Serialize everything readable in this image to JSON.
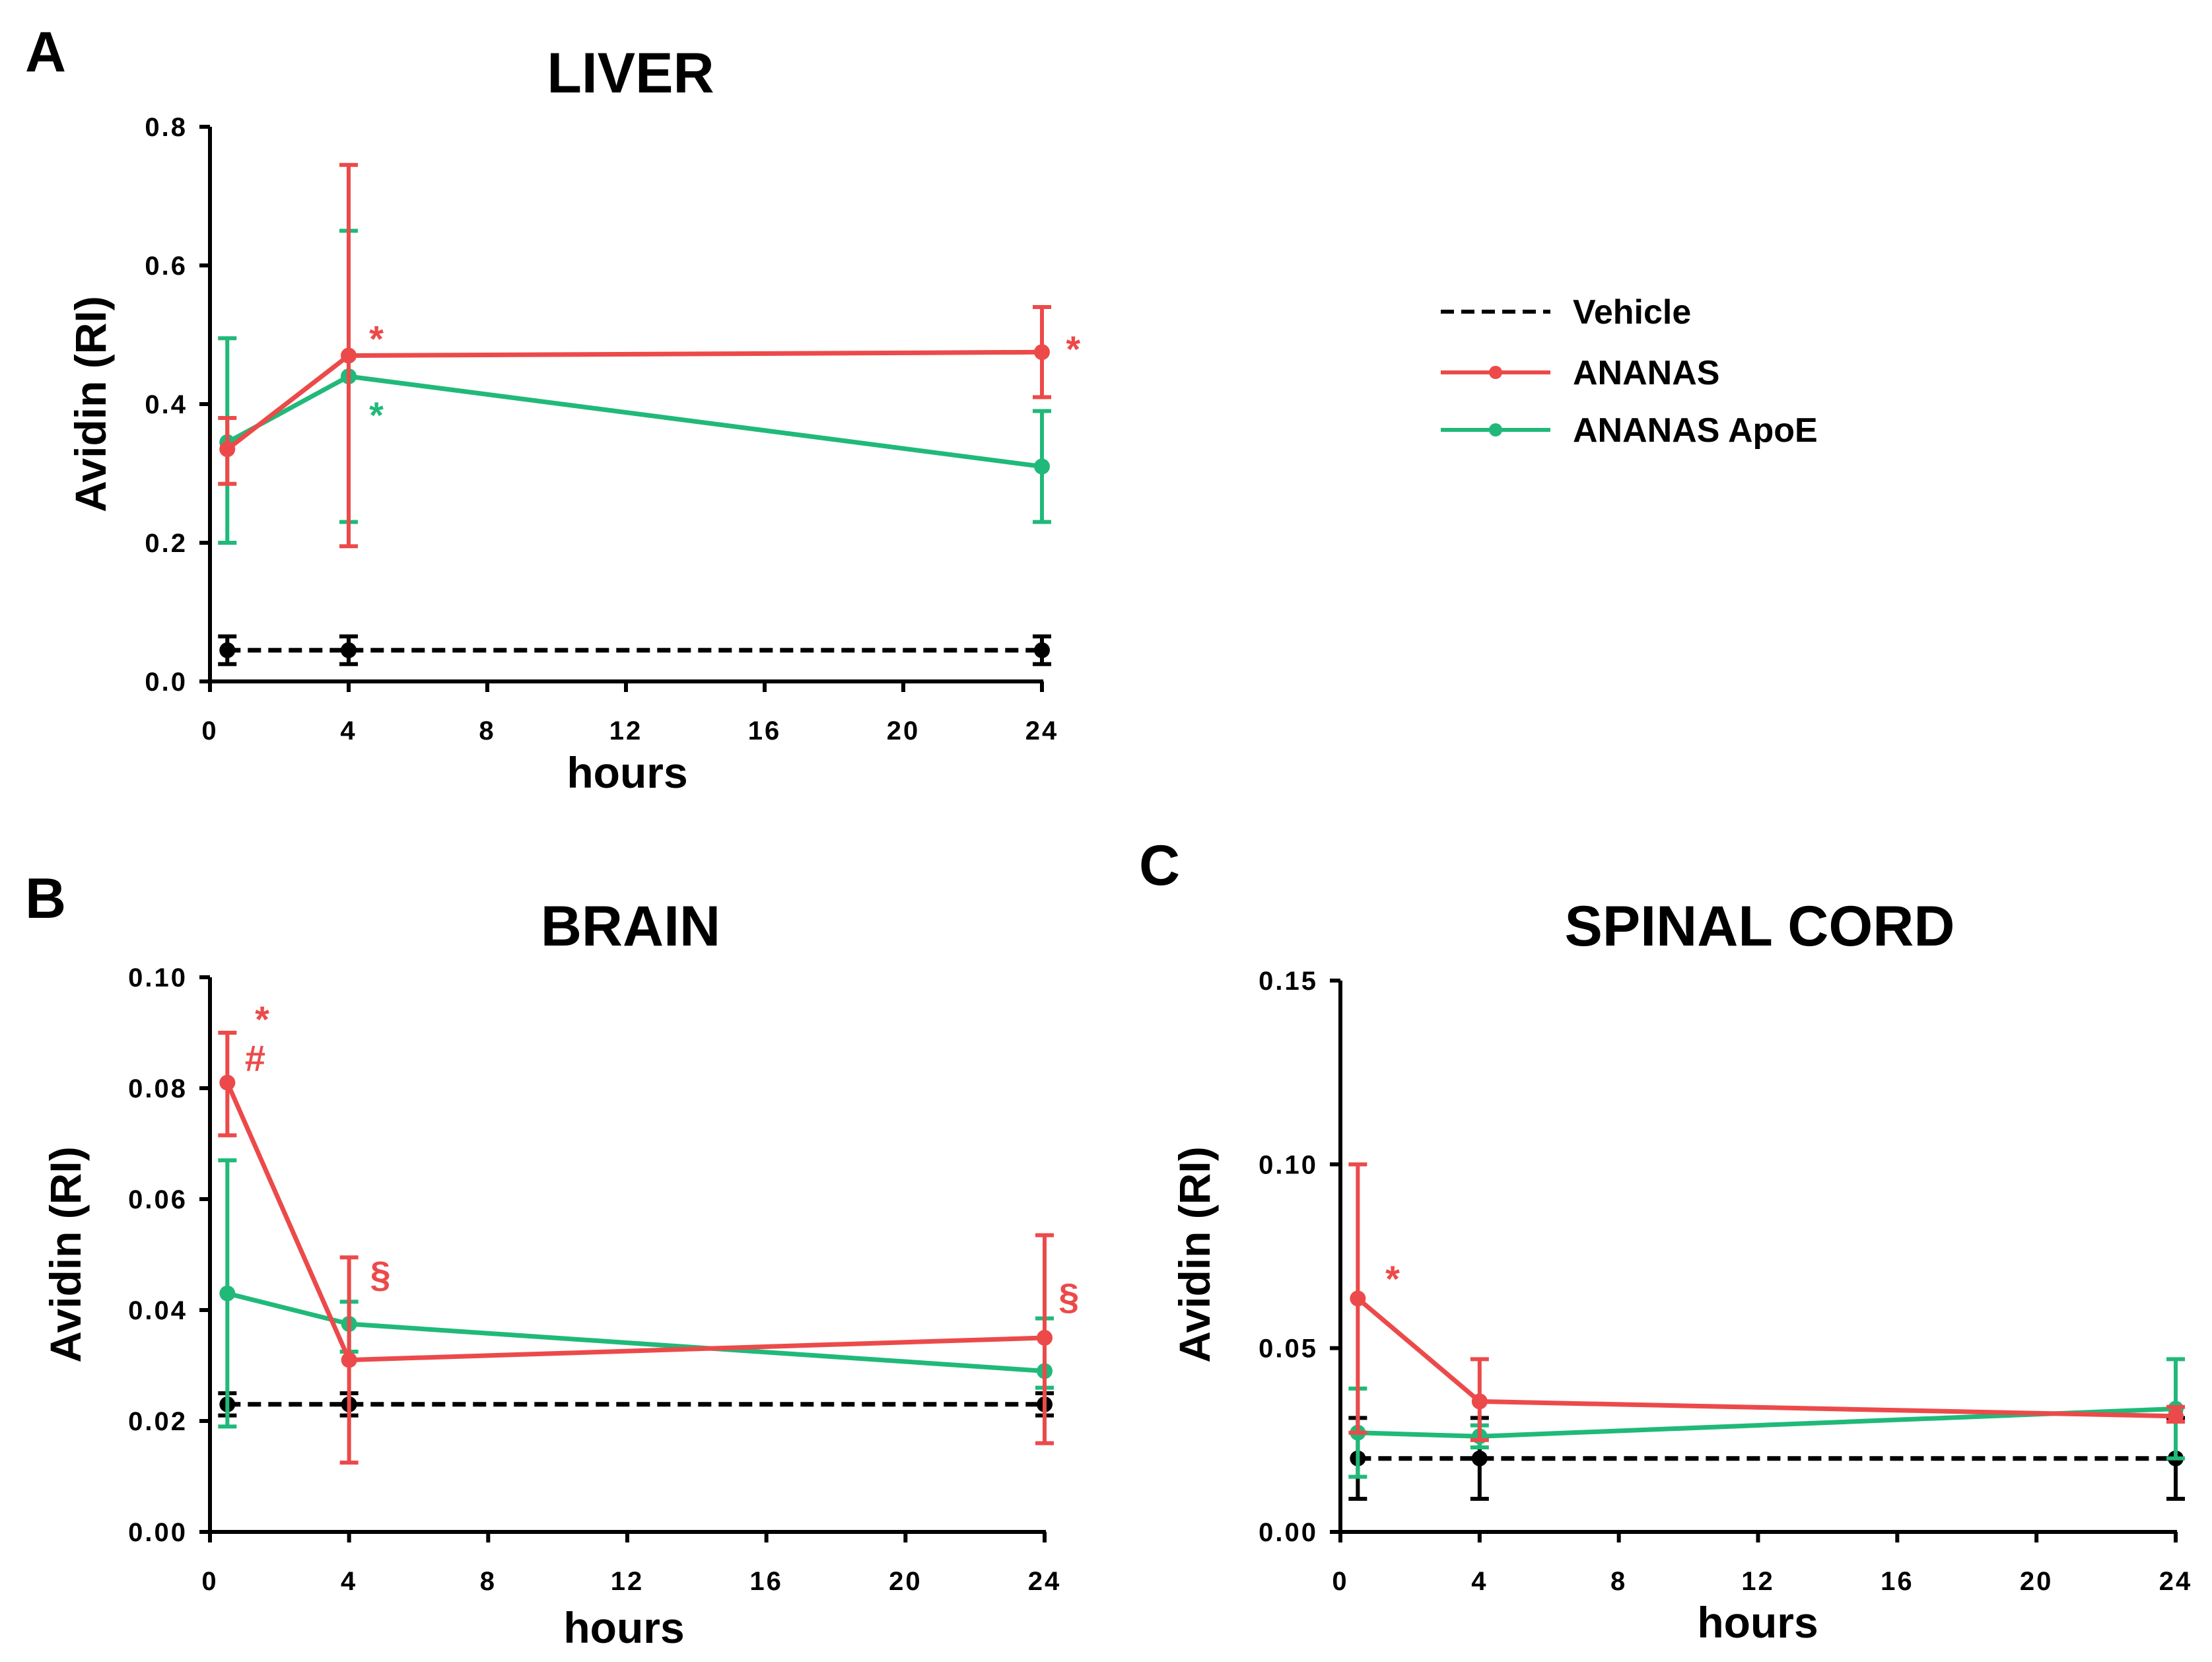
{
  "colors": {
    "vehicle": "#000000",
    "ananas": "#ec4a4a",
    "apoe": "#20b97a"
  },
  "legend": [
    {
      "key": "vehicle",
      "label": "Vehicle",
      "dashed": true
    },
    {
      "key": "ananas",
      "label": "ANANAS",
      "dashed": false
    },
    {
      "key": "apoe",
      "label": "ANANAS ApoE",
      "dashed": false
    }
  ],
  "chart_data": [
    {
      "panel": "A",
      "type": "line",
      "title": "LIVER",
      "xlabel": "hours",
      "ylabel": "Avidin (RI)",
      "xlim": [
        0,
        24
      ],
      "ylim": [
        0,
        0.8
      ],
      "xticks": [
        0,
        4,
        8,
        12,
        16,
        20,
        24
      ],
      "yticks": [
        0.0,
        0.2,
        0.4,
        0.6,
        0.8
      ],
      "ydecimals": 1,
      "series": [
        {
          "name": "Vehicle",
          "key": "vehicle",
          "dashed": true,
          "x": [
            0.5,
            4,
            24
          ],
          "y": [
            0.045,
            0.045,
            0.045
          ],
          "err_lo": [
            0.025,
            0.025,
            0.025
          ],
          "err_hi": [
            0.065,
            0.065,
            0.065
          ]
        },
        {
          "name": "ANANAS",
          "key": "ananas",
          "dashed": false,
          "x": [
            0.5,
            4,
            24
          ],
          "y": [
            0.335,
            0.47,
            0.475
          ],
          "err_lo": [
            0.285,
            0.195,
            0.41
          ],
          "err_hi": [
            0.38,
            0.745,
            0.54
          ]
        },
        {
          "name": "ANANAS ApoE",
          "key": "apoe",
          "dashed": false,
          "x": [
            0.5,
            4,
            24
          ],
          "y": [
            0.345,
            0.44,
            0.31
          ],
          "err_lo": [
            0.2,
            0.23,
            0.23
          ],
          "err_hi": [
            0.495,
            0.65,
            0.39
          ]
        }
      ],
      "annotations": [
        {
          "text": "*",
          "key": "ananas",
          "x": 4.8,
          "y": 0.495
        },
        {
          "text": "*",
          "key": "apoe",
          "x": 4.8,
          "y": 0.385
        },
        {
          "text": "*",
          "key": "ananas",
          "x": 24.9,
          "y": 0.48
        }
      ]
    },
    {
      "panel": "B",
      "type": "line",
      "title": "BRAIN",
      "xlabel": "hours",
      "ylabel": "Avidin (RI)",
      "xlim": [
        0,
        24
      ],
      "ylim": [
        0,
        0.1
      ],
      "xticks": [
        0,
        4,
        8,
        12,
        16,
        20,
        24
      ],
      "yticks": [
        0.0,
        0.02,
        0.04,
        0.06,
        0.08,
        0.1
      ],
      "ydecimals": 2,
      "series": [
        {
          "name": "Vehicle",
          "key": "vehicle",
          "dashed": true,
          "x": [
            0.5,
            4,
            24
          ],
          "y": [
            0.023,
            0.023,
            0.023
          ],
          "err_lo": [
            0.021,
            0.021,
            0.021
          ],
          "err_hi": [
            0.025,
            0.025,
            0.025
          ]
        },
        {
          "name": "ANANAS",
          "key": "ananas",
          "dashed": false,
          "x": [
            0.5,
            4,
            24
          ],
          "y": [
            0.081,
            0.031,
            0.035
          ],
          "err_lo": [
            0.0715,
            0.0125,
            0.016
          ],
          "err_hi": [
            0.09,
            0.0495,
            0.0535
          ]
        },
        {
          "name": "ANANAS ApoE",
          "key": "apoe",
          "dashed": false,
          "x": [
            0.5,
            4,
            24
          ],
          "y": [
            0.043,
            0.0375,
            0.029
          ],
          "err_lo": [
            0.019,
            0.0325,
            0.026
          ],
          "err_hi": [
            0.067,
            0.0415,
            0.0385
          ]
        }
      ],
      "annotations": [
        {
          "text": "*",
          "key": "ananas",
          "x": 1.5,
          "y": 0.0925
        },
        {
          "text": "#",
          "key": "ananas",
          "x": 1.3,
          "y": 0.0855
        },
        {
          "text": "§",
          "key": "ananas",
          "x": 4.9,
          "y": 0.0465
        },
        {
          "text": "§",
          "key": "ananas",
          "x": 24.7,
          "y": 0.0425
        }
      ]
    },
    {
      "panel": "C",
      "type": "line",
      "title": "SPINAL CORD",
      "xlabel": "hours",
      "ylabel": "Avidin (RI)",
      "xlim": [
        0,
        24
      ],
      "ylim": [
        0,
        0.15
      ],
      "xticks": [
        0,
        4,
        8,
        12,
        16,
        20,
        24
      ],
      "yticks": [
        0.0,
        0.05,
        0.1,
        0.15
      ],
      "ydecimals": 2,
      "series": [
        {
          "name": "Vehicle",
          "key": "vehicle",
          "dashed": true,
          "x": [
            0.5,
            4,
            24
          ],
          "y": [
            0.02,
            0.02,
            0.02
          ],
          "err_lo": [
            0.009,
            0.009,
            0.009
          ],
          "err_hi": [
            0.031,
            0.031,
            0.031
          ]
        },
        {
          "name": "ANANAS",
          "key": "ananas",
          "dashed": false,
          "x": [
            0.5,
            4,
            24
          ],
          "y": [
            0.0635,
            0.0355,
            0.0315
          ],
          "err_lo": [
            0.027,
            0.025,
            0.03
          ],
          "err_hi": [
            0.1,
            0.047,
            0.034
          ]
        },
        {
          "name": "ANANAS ApoE",
          "key": "apoe",
          "dashed": false,
          "x": [
            0.5,
            4,
            24
          ],
          "y": [
            0.027,
            0.026,
            0.0335
          ],
          "err_lo": [
            0.015,
            0.023,
            0.02
          ],
          "err_hi": [
            0.039,
            0.029,
            0.047
          ]
        }
      ],
      "annotations": [
        {
          "text": "*",
          "key": "ananas",
          "x": 1.5,
          "y": 0.069
        }
      ]
    }
  ]
}
